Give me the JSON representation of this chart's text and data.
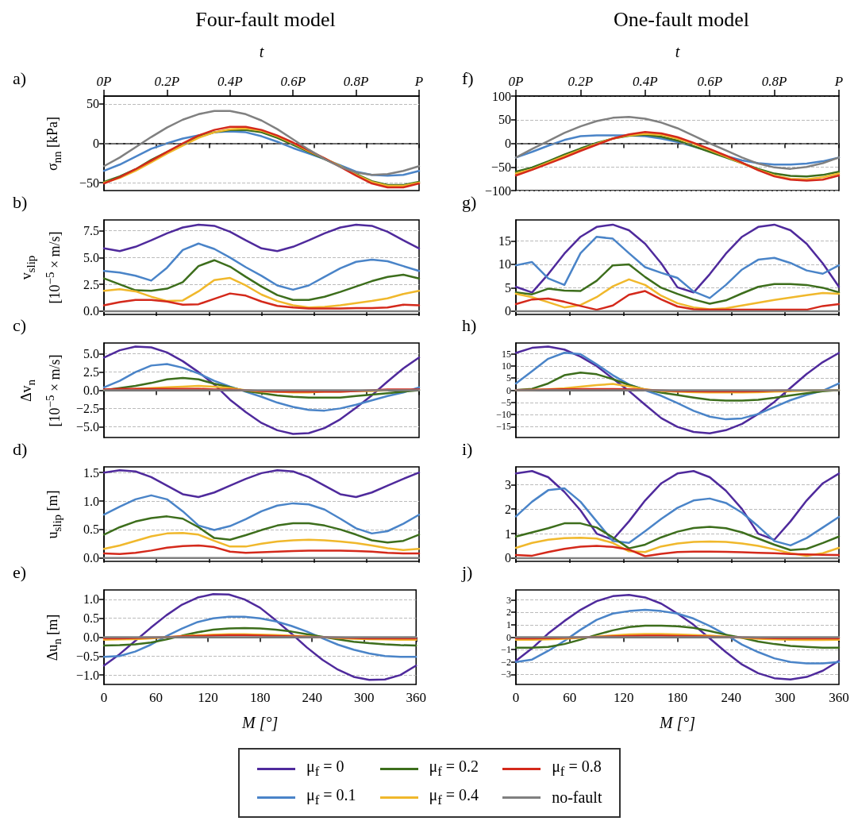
{
  "chart_data": [
    {
      "type": "line",
      "title": "Four-fault model",
      "annotations": [
        "a)"
      ],
      "ylabel": "σ$_{nn}$ [kPa]",
      "x2label": "t",
      "x": [
        0,
        18,
        36,
        54,
        72,
        90,
        108,
        126,
        144,
        162,
        180,
        198,
        216,
        234,
        252,
        270,
        288,
        306,
        324,
        342,
        360
      ],
      "xlim": [
        0,
        360
      ],
      "xticks": [
        0,
        60,
        120,
        180,
        240,
        300,
        360
      ],
      "x2lim": [
        0,
        1
      ],
      "x2ticks": [
        {
          "value": 0,
          "label": "0P"
        },
        {
          "value": 0.2,
          "label": "0.2P"
        },
        {
          "value": 0.4,
          "label": "0.4P"
        },
        {
          "value": 0.6,
          "label": "0.6P"
        },
        {
          "value": 0.8,
          "label": "0.8P"
        },
        {
          "value": 1,
          "label": "P"
        }
      ],
      "ylim": [
        -60,
        60
      ],
      "yticks": [
        {
          "value": -50,
          "label": "−50"
        },
        0,
        50
      ],
      "grid": "y",
      "marker": "none",
      "tick_labels": "y",
      "ref_lines": [
        {
          "axis": "y",
          "value": 0,
          "color": "#808080",
          "line_style": "dashed"
        }
      ],
      "series": [
        {
          "color": "#4a84c8",
          "values": [
            -35,
            -27,
            -17,
            -7,
            0,
            6,
            10,
            14,
            15,
            14,
            9,
            2,
            -6,
            -13,
            -20,
            -28,
            -36,
            -40,
            -41,
            -40,
            -35
          ]
        },
        {
          "color": "#3d6e1c",
          "values": [
            -49,
            -42,
            -33,
            -21,
            -11,
            -1,
            8,
            14,
            17,
            17,
            14,
            7,
            -2,
            -11,
            -20,
            -29,
            -39,
            -48,
            -53,
            -53,
            -49
          ]
        },
        {
          "color": "#f0b82c",
          "values": [
            -50,
            -44,
            -35,
            -24,
            -13,
            -3,
            7,
            14,
            18,
            19,
            16,
            9,
            0,
            -10,
            -19,
            -29,
            -40,
            -49,
            -54,
            -54,
            -50
          ]
        },
        {
          "color": "#d4291b",
          "values": [
            -51,
            -43,
            -33,
            -22,
            -11,
            0,
            10,
            17,
            21,
            21,
            17,
            10,
            1,
            -9,
            -19,
            -30,
            -41,
            -51,
            -56,
            -56,
            -51
          ]
        },
        {
          "color": "#808080",
          "values": [
            -29,
            -18,
            -5,
            8,
            20,
            30,
            37,
            41,
            41,
            37,
            29,
            18,
            5,
            -8,
            -20,
            -30,
            -37,
            -40,
            -39,
            -35,
            -29
          ]
        }
      ]
    },
    {
      "type": "line",
      "annotations": [
        "b)"
      ],
      "ylabel": "v$_{slip}$\n[10$^{−5}$ × m/s]",
      "legend": "bottom",
      "x": [
        0,
        18,
        36,
        54,
        72,
        90,
        108,
        126,
        144,
        162,
        180,
        198,
        216,
        234,
        252,
        270,
        288,
        306,
        324,
        342,
        360
      ],
      "xlim": [
        0,
        360
      ],
      "xticks": [
        0,
        60,
        120,
        180,
        240,
        300,
        360
      ],
      "ylim": [
        -0.3,
        8.5
      ],
      "yticks": [
        {
          "value": 0,
          "label": "0.0"
        },
        2.5,
        {
          "value": 5,
          "label": "5.0"
        },
        7.5
      ],
      "grid": "y",
      "marker": "none",
      "tick_labels": "y",
      "series": [
        {
          "name": "μ$_{f}$ = 0",
          "color": "#4f2a9c",
          "values": [
            5.85,
            5.6,
            6.0,
            6.6,
            7.25,
            7.8,
            8.05,
            7.95,
            7.4,
            6.6,
            5.85,
            5.6,
            6.0,
            6.6,
            7.25,
            7.8,
            8.05,
            7.95,
            7.4,
            6.6,
            5.85
          ]
        },
        {
          "name": "μ$_{f}$ = 0.1",
          "color": "#4a84c8",
          "values": [
            3.75,
            3.6,
            3.3,
            2.85,
            4.05,
            5.7,
            6.3,
            5.8,
            5.0,
            4.1,
            3.3,
            2.4,
            2.0,
            2.4,
            3.2,
            4.0,
            4.6,
            4.8,
            4.65,
            4.2,
            3.75
          ]
        },
        {
          "name": "μ$_{f}$ = 0.2",
          "color": "#3d6e1c",
          "values": [
            3.05,
            2.5,
            1.95,
            1.9,
            2.1,
            2.7,
            4.2,
            4.75,
            4.15,
            3.2,
            2.3,
            1.5,
            1.05,
            1.05,
            1.35,
            1.8,
            2.3,
            2.8,
            3.2,
            3.4,
            3.05
          ]
        },
        {
          "name": "μ$_{f}$ = 0.4",
          "color": "#f0b82c",
          "values": [
            1.9,
            2.05,
            1.85,
            1.35,
            0.95,
            1.0,
            1.85,
            2.9,
            3.1,
            2.4,
            1.55,
            0.95,
            0.55,
            0.35,
            0.4,
            0.55,
            0.75,
            0.95,
            1.2,
            1.6,
            1.9
          ]
        },
        {
          "name": "μ$_{f}$ = 0.8",
          "color": "#d4291b",
          "values": [
            0.55,
            0.85,
            1.05,
            1.05,
            0.9,
            0.6,
            0.65,
            1.15,
            1.65,
            1.45,
            0.9,
            0.5,
            0.35,
            0.25,
            0.25,
            0.25,
            0.3,
            0.3,
            0.35,
            0.6,
            0.55
          ]
        },
        {
          "name": "no-fault",
          "color": "#808080",
          "values": [
            0,
            0,
            0,
            0,
            0,
            0,
            0,
            0,
            0,
            0,
            0,
            0,
            0,
            0,
            0,
            0,
            0,
            0,
            0,
            0,
            0
          ]
        }
      ]
    },
    {
      "type": "line",
      "annotations": [
        "c)"
      ],
      "ylabel": "Δv$_{n}$\n[10$^{−5}$ × m/s]",
      "x": [
        0,
        18,
        36,
        54,
        72,
        90,
        108,
        126,
        144,
        162,
        180,
        198,
        216,
        234,
        252,
        270,
        288,
        306,
        324,
        342,
        360
      ],
      "xlim": [
        0,
        360
      ],
      "xticks": [
        0,
        60,
        120,
        180,
        240,
        300,
        360
      ],
      "ylim": [
        -6.5,
        6.5
      ],
      "yticks": [
        {
          "value": -5,
          "label": "−5.0"
        },
        {
          "value": -2.5,
          "label": "−2.5"
        },
        {
          "value": 0,
          "label": "0.0"
        },
        2.5,
        {
          "value": 5,
          "label": "5.0"
        }
      ],
      "grid": "y",
      "marker": "none",
      "tick_labels": "y",
      "series": [
        {
          "color": "#4f2a9c",
          "values": [
            4.5,
            5.5,
            6.0,
            5.9,
            5.2,
            4.0,
            2.5,
            0.8,
            -1.3,
            -3.0,
            -4.5,
            -5.5,
            -6.0,
            -5.9,
            -5.2,
            -4.0,
            -2.4,
            -0.7,
            1.2,
            3.0,
            4.5
          ]
        },
        {
          "color": "#4a84c8",
          "values": [
            0.4,
            1.3,
            2.5,
            3.4,
            3.6,
            3.1,
            2.3,
            1.3,
            0.5,
            -0.2,
            -0.9,
            -1.7,
            -2.3,
            -2.7,
            -2.8,
            -2.5,
            -2.0,
            -1.4,
            -0.8,
            -0.3,
            0.4
          ]
        },
        {
          "color": "#3d6e1c",
          "values": [
            0,
            0.3,
            0.6,
            1.0,
            1.5,
            1.7,
            1.5,
            0.9,
            0.4,
            -0.1,
            -0.4,
            -0.7,
            -0.9,
            -1.0,
            -1.0,
            -1.0,
            -0.8,
            -0.6,
            -0.4,
            -0.2,
            0
          ]
        },
        {
          "color": "#f0b82c",
          "values": [
            null,
            null,
            0.2,
            0.3,
            0.4,
            0.5,
            0.6,
            0.5,
            0.3,
            0,
            -0.2,
            -0.2,
            -0.3,
            -0.3,
            -0.2,
            -0.2,
            -0.1,
            -0.1,
            0,
            null,
            null
          ]
        },
        {
          "color": "#d4291b",
          "values": [
            0.1,
            0.2,
            0.2,
            0.2,
            0.2,
            0.2,
            0.2,
            0.1,
            0.1,
            0,
            -0.1,
            -0.2,
            -0.2,
            -0.2,
            -0.2,
            -0.2,
            -0.1,
            0,
            0.1,
            0.1,
            0.1
          ]
        },
        {
          "color": "#808080",
          "values": [
            0,
            0,
            0,
            0,
            0,
            0,
            0,
            0,
            0,
            0,
            0,
            0,
            0,
            0,
            0,
            0,
            0,
            0,
            0,
            0,
            0
          ]
        }
      ]
    },
    {
      "type": "line",
      "annotations": [
        "d)"
      ],
      "ylabel": "u$_{slip}$ [m]",
      "x": [
        0,
        18,
        36,
        54,
        72,
        90,
        108,
        126,
        144,
        162,
        180,
        198,
        216,
        234,
        252,
        270,
        288,
        306,
        324,
        342,
        360
      ],
      "xlim": [
        0,
        360
      ],
      "xticks": [
        0,
        60,
        120,
        180,
        240,
        300,
        360
      ],
      "ylim": [
        -0.06,
        1.6
      ],
      "yticks": [
        {
          "value": 0,
          "label": "0.0"
        },
        0.5,
        {
          "value": 1,
          "label": "1.0"
        },
        1.5
      ],
      "grid": "y",
      "marker": "none",
      "tick_labels": "y",
      "series": [
        {
          "color": "#4f2a9c",
          "values": [
            1.5,
            1.54,
            1.52,
            1.42,
            1.27,
            1.12,
            1.07,
            1.15,
            1.27,
            1.39,
            1.49,
            1.54,
            1.52,
            1.42,
            1.27,
            1.12,
            1.07,
            1.15,
            1.27,
            1.39,
            1.5
          ]
        },
        {
          "color": "#4a84c8",
          "values": [
            0.76,
            0.9,
            1.03,
            1.1,
            1.03,
            0.82,
            0.57,
            0.49,
            0.56,
            0.68,
            0.82,
            0.92,
            0.96,
            0.94,
            0.85,
            0.69,
            0.52,
            0.43,
            0.47,
            0.6,
            0.76
          ]
        },
        {
          "color": "#3d6e1c",
          "values": [
            0.41,
            0.54,
            0.64,
            0.7,
            0.73,
            0.69,
            0.54,
            0.35,
            0.32,
            0.4,
            0.49,
            0.57,
            0.61,
            0.61,
            0.57,
            0.5,
            0.41,
            0.31,
            0.27,
            0.3,
            0.41
          ]
        },
        {
          "color": "#f0b82c",
          "values": [
            0.16,
            0.22,
            0.3,
            0.38,
            0.43,
            0.44,
            0.41,
            0.3,
            0.2,
            0.2,
            0.25,
            0.29,
            0.31,
            0.32,
            0.31,
            0.29,
            0.26,
            0.22,
            0.17,
            0.14,
            0.16
          ]
        },
        {
          "color": "#d4291b",
          "values": [
            0.08,
            0.07,
            0.09,
            0.13,
            0.18,
            0.21,
            0.22,
            0.19,
            0.11,
            0.09,
            0.1,
            0.11,
            0.12,
            0.13,
            0.13,
            0.13,
            0.12,
            0.11,
            0.09,
            0.08,
            0.08
          ]
        },
        {
          "color": "#808080",
          "values": [
            0,
            0,
            0,
            0,
            0,
            0,
            0,
            0,
            0,
            0,
            0,
            0,
            0,
            0,
            0,
            0,
            0,
            0,
            0,
            0,
            0
          ]
        }
      ]
    },
    {
      "type": "line",
      "annotations": [
        "e)"
      ],
      "ylabel": "Δu$_{n}$ [m]",
      "xlabel": "M [°]",
      "x": [
        0,
        18,
        36,
        54,
        72,
        90,
        108,
        126,
        144,
        162,
        180,
        198,
        216,
        234,
        252,
        270,
        288,
        306,
        324,
        342,
        360
      ],
      "xlim": [
        0,
        360
      ],
      "xticks": [
        0,
        60,
        120,
        180,
        240,
        300,
        360
      ],
      "ylim": [
        -1.25,
        1.25
      ],
      "yticks": [
        {
          "value": -1,
          "label": "−1.0"
        },
        {
          "value": -0.5,
          "label": "−0.5"
        },
        {
          "value": 0,
          "label": "0.0"
        },
        0.5,
        {
          "value": 1,
          "label": "1.0"
        }
      ],
      "grid": "y",
      "marker": "none",
      "series": [
        {
          "color": "#4f2a9c",
          "values": [
            -0.75,
            -0.45,
            -0.1,
            0.25,
            0.58,
            0.86,
            1.05,
            1.14,
            1.13,
            1.0,
            0.78,
            0.45,
            0.1,
            -0.27,
            -0.6,
            -0.86,
            -1.05,
            -1.13,
            -1.12,
            -1.0,
            -0.75
          ]
        },
        {
          "color": "#4a84c8",
          "values": [
            -0.52,
            -0.5,
            -0.38,
            -0.2,
            0.03,
            0.23,
            0.4,
            0.5,
            0.54,
            0.54,
            0.5,
            0.42,
            0.3,
            0.15,
            -0.03,
            -0.2,
            -0.33,
            -0.43,
            -0.5,
            -0.52,
            -0.52
          ]
        },
        {
          "color": "#3d6e1c",
          "values": [
            -0.22,
            -0.21,
            -0.19,
            -0.14,
            -0.06,
            0.04,
            0.13,
            0.2,
            0.23,
            0.24,
            0.23,
            0.2,
            0.15,
            0.08,
            0.01,
            -0.06,
            -0.12,
            -0.16,
            -0.19,
            -0.21,
            -0.22
          ]
        },
        {
          "color": "#f0b82c",
          "values": [
            -0.07,
            -0.06,
            -0.05,
            -0.03,
            0,
            0.03,
            0.05,
            0.07,
            0.08,
            0.08,
            0.07,
            0.06,
            0.04,
            0.02,
            0,
            -0.02,
            -0.04,
            -0.05,
            -0.06,
            -0.07,
            -0.07
          ]
        },
        {
          "color": "#d4291b",
          "values": [
            -0.03,
            -0.03,
            -0.02,
            -0.01,
            0,
            0.02,
            0.03,
            0.04,
            0.05,
            0.05,
            0.04,
            0.03,
            0.02,
            0.01,
            0,
            -0.01,
            -0.02,
            -0.03,
            -0.03,
            -0.03,
            -0.03
          ]
        },
        {
          "color": "#808080",
          "values": [
            0,
            0,
            0,
            0,
            0,
            0,
            0,
            0,
            0,
            0,
            0,
            0,
            0,
            0,
            0,
            0,
            0,
            0,
            0,
            0,
            0
          ]
        }
      ]
    },
    {
      "type": "line",
      "title": "One-fault model",
      "annotations": [
        "f)"
      ],
      "x2label": "t",
      "x": [
        0,
        18,
        36,
        54,
        72,
        90,
        108,
        126,
        144,
        162,
        180,
        198,
        216,
        234,
        252,
        270,
        288,
        306,
        324,
        342,
        360
      ],
      "xlim": [
        0,
        360
      ],
      "xticks": [
        0,
        60,
        120,
        180,
        240,
        300,
        360
      ],
      "x2lim": [
        0,
        1
      ],
      "x2ticks": [
        {
          "value": 0,
          "label": "0P"
        },
        {
          "value": 0.2,
          "label": "0.2P"
        },
        {
          "value": 0.4,
          "label": "0.4P"
        },
        {
          "value": 0.6,
          "label": "0.6P"
        },
        {
          "value": 0.8,
          "label": "0.8P"
        },
        {
          "value": 1,
          "label": "P"
        }
      ],
      "ylim": [
        -100,
        100
      ],
      "yticks": [
        {
          "value": -100,
          "label": "−100"
        },
        {
          "value": -50,
          "label": "−50"
        },
        0,
        50,
        100
      ],
      "grid": "y",
      "marker": "none",
      "tick_labels": "y",
      "ref_lines": [
        {
          "axis": "y",
          "value": 0,
          "color": "#808080",
          "line_style": "dashed"
        }
      ],
      "series": [
        {
          "color": "#4a84c8",
          "values": [
            -30,
            -18,
            -5,
            7,
            15,
            17,
            17,
            17,
            15,
            10,
            3,
            -7,
            -17,
            -27,
            -36,
            -42,
            -45,
            -45,
            -43,
            -38,
            -30
          ]
        },
        {
          "color": "#3d6e1c",
          "values": [
            -60,
            -51,
            -38,
            -24,
            -11,
            1,
            10,
            16,
            18,
            14,
            6,
            -6,
            -18,
            -30,
            -42,
            -54,
            -64,
            -69,
            -70,
            -67,
            -60
          ]
        },
        {
          "color": "#f0b82c",
          "values": [
            -64,
            -55,
            -41,
            -27,
            -14,
            -1,
            10,
            17,
            20,
            18,
            10,
            -1,
            -14,
            -28,
            -42,
            -56,
            -68,
            -75,
            -76,
            -72,
            -64
          ]
        },
        {
          "color": "#d4291b",
          "values": [
            -68,
            -56,
            -43,
            -30,
            -16,
            -3,
            10,
            19,
            24,
            21,
            13,
            1,
            -12,
            -26,
            -41,
            -57,
            -70,
            -77,
            -79,
            -77,
            -68
          ]
        },
        {
          "color": "#808080",
          "values": [
            -30,
            -12,
            5,
            22,
            36,
            47,
            54,
            56,
            52,
            44,
            32,
            16,
            0,
            -15,
            -30,
            -43,
            -51,
            -54,
            -50,
            -42,
            -30
          ]
        }
      ]
    },
    {
      "type": "line",
      "annotations": [
        "g)"
      ],
      "x": [
        0,
        18,
        36,
        54,
        72,
        90,
        108,
        126,
        144,
        162,
        180,
        198,
        216,
        234,
        252,
        270,
        288,
        306,
        324,
        342,
        360
      ],
      "xlim": [
        0,
        360
      ],
      "xticks": [
        0,
        60,
        120,
        180,
        240,
        300,
        360
      ],
      "ylim": [
        -0.7,
        19.5
      ],
      "yticks": [
        0,
        5,
        10,
        15
      ],
      "grid": "y",
      "marker": "none",
      "tick_labels": "y",
      "series": [
        {
          "color": "#4f2a9c",
          "values": [
            5.2,
            4.0,
            7.9,
            12.3,
            15.9,
            18.0,
            18.5,
            17.3,
            14.4,
            10.2,
            5.1,
            4.0,
            7.9,
            12.3,
            15.9,
            18.0,
            18.5,
            17.3,
            14.4,
            10.2,
            5.2
          ]
        },
        {
          "color": "#4a84c8",
          "values": [
            9.8,
            10.5,
            7.0,
            5.6,
            12.4,
            15.9,
            15.5,
            12.4,
            9.4,
            8.2,
            7.1,
            4.2,
            2.8,
            5.6,
            8.9,
            11.0,
            11.4,
            10.3,
            8.7,
            8.0,
            9.8
          ]
        },
        {
          "color": "#3d6e1c",
          "values": [
            4.0,
            3.6,
            4.8,
            4.4,
            4.3,
            6.5,
            9.8,
            10.0,
            7.3,
            5.0,
            3.7,
            2.5,
            1.6,
            2.3,
            3.8,
            5.2,
            5.8,
            5.8,
            5.6,
            5.0,
            4.0
          ]
        },
        {
          "color": "#f0b82c",
          "values": [
            3.7,
            3.0,
            1.9,
            0.8,
            1.3,
            3.0,
            5.3,
            6.8,
            5.6,
            3.3,
            1.7,
            0.8,
            0.4,
            0.6,
            1.2,
            1.8,
            2.4,
            2.9,
            3.4,
            3.9,
            3.7
          ]
        },
        {
          "color": "#d4291b",
          "values": [
            1.5,
            2.5,
            2.7,
            2.0,
            1.1,
            0.3,
            1.2,
            3.5,
            4.3,
            2.5,
            1.0,
            0.4,
            0.3,
            0.3,
            0.3,
            0.3,
            0.3,
            0.3,
            0.3,
            1.1,
            1.5
          ]
        },
        {
          "color": "#808080",
          "values": [
            0,
            0,
            0,
            0,
            0,
            0,
            0,
            0,
            0,
            0,
            0,
            0,
            0,
            0,
            0,
            0,
            0,
            0,
            0,
            0,
            0
          ]
        }
      ]
    },
    {
      "type": "line",
      "annotations": [
        "h)"
      ],
      "x": [
        0,
        18,
        36,
        54,
        72,
        90,
        108,
        126,
        144,
        162,
        180,
        198,
        216,
        234,
        252,
        270,
        288,
        306,
        324,
        342,
        360
      ],
      "xlim": [
        0,
        360
      ],
      "xticks": [
        0,
        60,
        120,
        180,
        240,
        300,
        360
      ],
      "ylim": [
        -19.5,
        19.5
      ],
      "yticks": [
        {
          "value": -15,
          "label": "−15"
        },
        {
          "value": -10,
          "label": "−10"
        },
        {
          "value": -5,
          "label": "−5"
        },
        0,
        5,
        10,
        15
      ],
      "grid": "y",
      "marker": "none",
      "tick_labels": "y",
      "series": [
        {
          "color": "#4f2a9c",
          "values": [
            15.4,
            17.5,
            18.0,
            16.8,
            13.9,
            10,
            4.8,
            -0.3,
            -6,
            -11.5,
            -15.1,
            -17.2,
            -17.8,
            -16.5,
            -13.9,
            -9.8,
            -4.8,
            1,
            6.7,
            11.6,
            15.4
          ]
        },
        {
          "color": "#4a84c8",
          "values": [
            2.8,
            7.9,
            13.0,
            15.5,
            14.9,
            10.7,
            6.2,
            2.4,
            0,
            -2.3,
            -5.3,
            -8.5,
            -10.9,
            -12.0,
            -11.6,
            -9.8,
            -6.9,
            -4.1,
            -1.9,
            -0.2,
            2.8
          ]
        },
        {
          "color": "#3d6e1c",
          "values": [
            0.1,
            0.6,
            2.8,
            6.2,
            7.3,
            6.6,
            4.6,
            2.2,
            0.3,
            -1.0,
            -2.0,
            -3.0,
            -3.9,
            -4.3,
            -4.3,
            -3.9,
            -3.1,
            -2.1,
            -1.2,
            -0.4,
            0.1
          ]
        },
        {
          "color": "#f0b82c",
          "values": [
            0.1,
            0.2,
            0.4,
            0.8,
            1.5,
            2.1,
            2.6,
            1.6,
            0.4,
            -0.3,
            -0.6,
            -0.8,
            -0.9,
            -0.9,
            -0.9,
            -0.8,
            -0.6,
            -0.4,
            -0.2,
            0,
            0.1
          ]
        },
        {
          "color": "#d4291b",
          "values": [
            0.1,
            0.2,
            0.3,
            0.4,
            0.5,
            0.5,
            0.5,
            0.4,
            0.2,
            -0.1,
            -0.3,
            -0.4,
            -0.5,
            -0.5,
            -0.5,
            -0.4,
            -0.2,
            -0.1,
            null,
            null,
            null
          ]
        },
        {
          "color": "#808080",
          "values": [
            0,
            0,
            0,
            0,
            0,
            0,
            0,
            0,
            0,
            0,
            0,
            0,
            0,
            0,
            0,
            0,
            0,
            0,
            0,
            0,
            0
          ]
        }
      ]
    },
    {
      "type": "line",
      "annotations": [
        "i)"
      ],
      "x": [
        0,
        18,
        36,
        54,
        72,
        90,
        108,
        126,
        144,
        162,
        180,
        198,
        216,
        234,
        252,
        270,
        288,
        306,
        324,
        342,
        360
      ],
      "xlim": [
        0,
        360
      ],
      "xticks": [
        0,
        60,
        120,
        180,
        240,
        300,
        360
      ],
      "ylim": [
        -0.13,
        3.72
      ],
      "yticks": [
        0,
        1,
        2,
        3
      ],
      "grid": "y",
      "marker": "none",
      "tick_labels": "y",
      "series": [
        {
          "color": "#4f2a9c",
          "values": [
            3.45,
            3.55,
            3.3,
            2.7,
            1.95,
            1.0,
            0.75,
            1.5,
            2.35,
            3.05,
            3.45,
            3.55,
            3.3,
            2.75,
            2.0,
            1.0,
            0.75,
            1.5,
            2.35,
            3.05,
            3.45
          ]
        },
        {
          "color": "#4a84c8",
          "values": [
            1.7,
            2.3,
            2.77,
            2.85,
            2.3,
            1.5,
            0.7,
            0.62,
            1.1,
            1.6,
            2.05,
            2.35,
            2.43,
            2.25,
            1.85,
            1.3,
            0.7,
            0.52,
            0.82,
            1.25,
            1.68
          ]
        },
        {
          "color": "#3d6e1c",
          "values": [
            0.88,
            1.05,
            1.22,
            1.42,
            1.42,
            1.25,
            0.85,
            0.4,
            0.55,
            0.85,
            1.08,
            1.23,
            1.28,
            1.22,
            1.05,
            0.8,
            0.55,
            0.33,
            0.38,
            0.62,
            0.88
          ]
        },
        {
          "color": "#f0b82c",
          "values": [
            0.42,
            0.62,
            0.75,
            0.82,
            0.83,
            0.8,
            0.62,
            0.28,
            0.25,
            0.48,
            0.6,
            0.66,
            0.68,
            0.66,
            0.6,
            0.5,
            0.36,
            0.2,
            0.1,
            0.2,
            0.42
          ]
        },
        {
          "color": "#d4291b",
          "values": [
            0.13,
            0.1,
            0.25,
            0.38,
            0.47,
            0.5,
            0.46,
            0.35,
            0.08,
            0.18,
            0.25,
            0.27,
            0.27,
            0.26,
            0.24,
            0.22,
            0.2,
            0.17,
            0.15,
            0.14,
            0.13
          ]
        },
        {
          "color": "#808080",
          "values": [
            0,
            0,
            0,
            0,
            0,
            0,
            0,
            0,
            0,
            0,
            0,
            0,
            0,
            0,
            0,
            0,
            0,
            0,
            0,
            0,
            0
          ]
        }
      ]
    },
    {
      "type": "line",
      "annotations": [
        "j)"
      ],
      "xlabel": "M [°]",
      "x": [
        0,
        18,
        36,
        54,
        72,
        90,
        108,
        126,
        144,
        162,
        180,
        198,
        216,
        234,
        252,
        270,
        288,
        306,
        324,
        342,
        360
      ],
      "xlim": [
        0,
        360
      ],
      "xticks": [
        0,
        60,
        120,
        180,
        240,
        300,
        360
      ],
      "ylim": [
        -3.8,
        3.8
      ],
      "yticks": [
        {
          "value": -3,
          "label": "−3"
        },
        {
          "value": -2,
          "label": "−2"
        },
        {
          "value": -1,
          "label": "−1"
        },
        0,
        1,
        2,
        3
      ],
      "grid": "y",
      "marker": "none",
      "series": [
        {
          "color": "#4f2a9c",
          "values": [
            -1.9,
            -0.9,
            0.3,
            1.3,
            2.2,
            2.9,
            3.3,
            3.4,
            3.2,
            2.7,
            1.9,
            1.0,
            -0.1,
            -1.2,
            -2.2,
            -2.9,
            -3.3,
            -3.4,
            -3.2,
            -2.7,
            -1.9
          ]
        },
        {
          "color": "#4a84c8",
          "values": [
            -2.0,
            -1.8,
            -1.1,
            -0.3,
            0.6,
            1.4,
            1.9,
            2.1,
            2.2,
            2.1,
            1.9,
            1.5,
            0.9,
            0.2,
            -0.6,
            -1.2,
            -1.7,
            -2.0,
            -2.1,
            -2.1,
            -2.0
          ]
        },
        {
          "color": "#3d6e1c",
          "values": [
            -0.85,
            -0.84,
            -0.78,
            -0.55,
            -0.2,
            0.2,
            0.55,
            0.82,
            0.92,
            0.93,
            0.88,
            0.75,
            0.5,
            0.2,
            -0.05,
            -0.35,
            -0.55,
            -0.7,
            -0.78,
            -0.84,
            -0.85
          ]
        },
        {
          "color": "#f0b82c",
          "values": [
            -0.2,
            -0.2,
            -0.18,
            -0.12,
            -0.05,
            0.05,
            0.15,
            0.22,
            0.25,
            0.25,
            0.22,
            0.18,
            0.12,
            0.05,
            -0.05,
            -0.12,
            -0.18,
            -0.2,
            -0.22,
            -0.22,
            -0.2
          ]
        },
        {
          "color": "#d4291b",
          "values": [
            -0.1,
            -0.1,
            -0.08,
            -0.05,
            -0.02,
            0.02,
            0.06,
            0.1,
            0.12,
            0.12,
            0.1,
            0.08,
            0.05,
            0.02,
            -0.02,
            -0.05,
            -0.08,
            -0.1,
            -0.1,
            -0.1,
            -0.1
          ]
        },
        {
          "color": "#808080",
          "values": [
            0,
            0,
            0,
            0,
            0,
            0,
            0,
            0,
            0,
            0,
            0,
            0,
            0,
            0,
            0,
            0,
            0,
            0,
            0,
            0,
            0
          ]
        }
      ]
    }
  ]
}
